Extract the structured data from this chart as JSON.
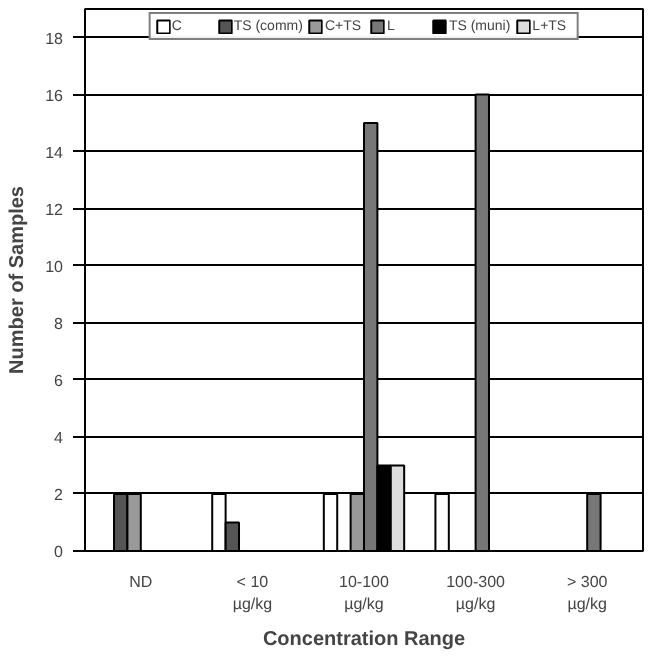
{
  "chart_data": {
    "type": "bar",
    "xlabel": "Concentration Range",
    "ylabel": "Number of Samples",
    "categories": [
      "ND",
      "< 10 µg/kg",
      "10-100 µg/kg",
      "100-300 µg/kg",
      "> 300 µg/kg"
    ],
    "series": [
      {
        "name": "C",
        "color": "#ffffff",
        "values": [
          null,
          2,
          2,
          2,
          null
        ]
      },
      {
        "name": "TS (comm)",
        "color": "#555555",
        "values": [
          2,
          1,
          null,
          null,
          null
        ]
      },
      {
        "name": "C+TS",
        "color": "#999999",
        "values": [
          2,
          null,
          2,
          null,
          null
        ]
      },
      {
        "name": "L",
        "color": "#777777",
        "values": [
          null,
          null,
          15,
          16,
          2
        ]
      },
      {
        "name": "TS (muni)",
        "color": "#000000",
        "values": [
          null,
          null,
          3,
          null,
          null
        ]
      },
      {
        "name": "L+TS",
        "color": "#dddddd",
        "values": [
          null,
          null,
          3,
          null,
          null
        ]
      }
    ],
    "ylim": [
      0,
      19
    ],
    "yticks": [
      0,
      2,
      4,
      6,
      8,
      10,
      12,
      14,
      16,
      18
    ],
    "grid": "y",
    "legend": "top"
  }
}
